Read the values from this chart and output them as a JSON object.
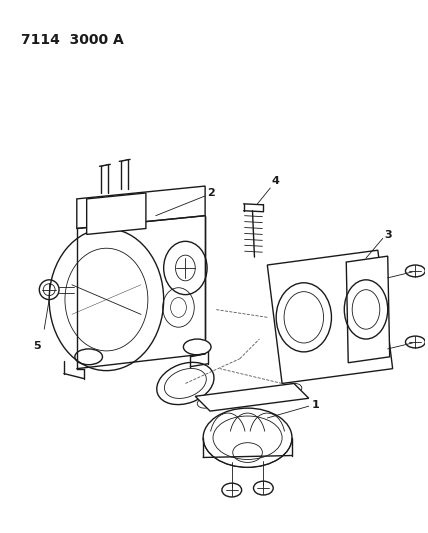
{
  "title": "7114  3000 A",
  "title_fontsize": 10,
  "title_fontweight": "bold",
  "bg_color": "#ffffff",
  "line_color": "#1a1a1a",
  "line_color2": "#555555",
  "lw_main": 1.0,
  "lw_thin": 0.6,
  "lw_dash": 0.5
}
